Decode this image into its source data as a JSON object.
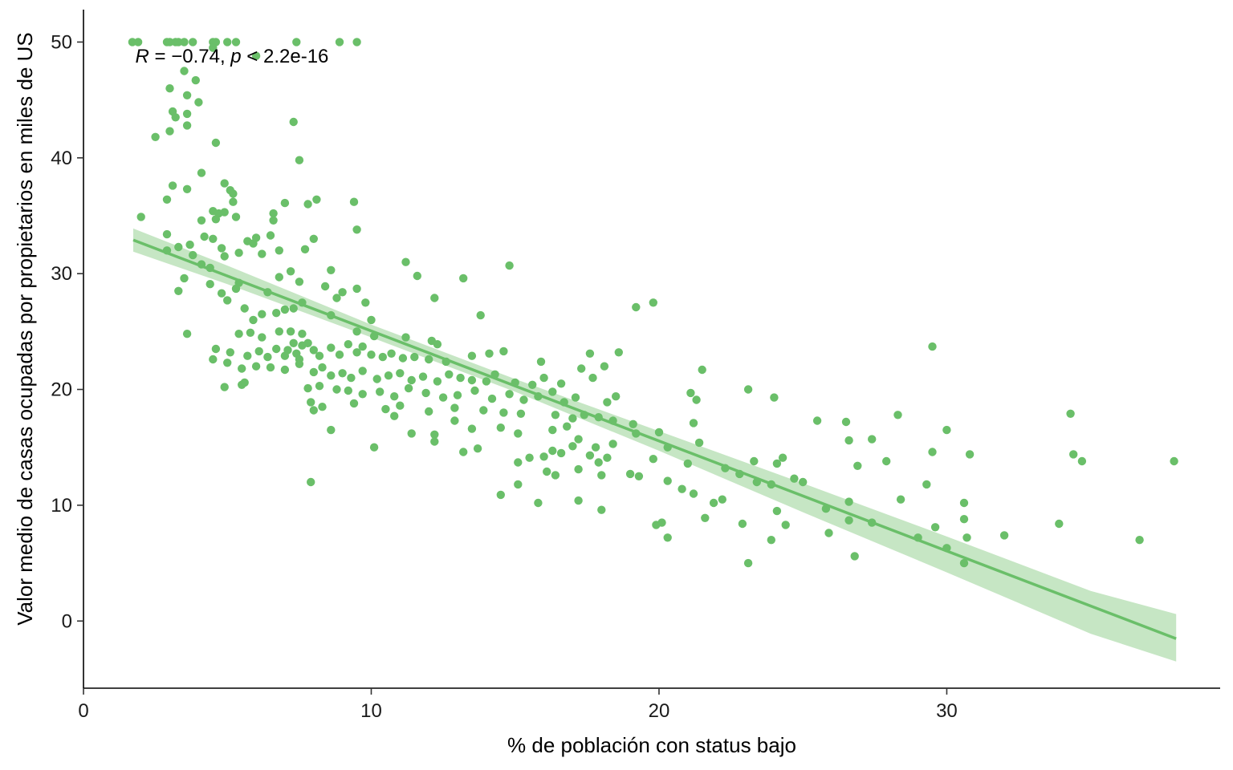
{
  "chart_data": {
    "type": "scatter",
    "title": "",
    "xlabel": "% de población con status bajo",
    "ylabel": "Valor medio de casas ocupadas por propietarios en miles de US",
    "xlim": [
      0,
      39.5
    ],
    "ylim": [
      -5.8,
      52.8
    ],
    "x_ticks": [
      0,
      10,
      20,
      30
    ],
    "y_ticks": [
      0,
      10,
      20,
      30,
      40,
      50
    ],
    "x_tick_labels": [
      "0",
      "10",
      "20",
      "30"
    ],
    "y_tick_labels": [
      "0",
      "10",
      "20",
      "30",
      "40",
      "50"
    ],
    "grid": false,
    "legend": "none",
    "color": "#6ABF69",
    "band_color": "#C6E6C4",
    "annotation": {
      "r_label": "R",
      "r_value": " = −0.74, ",
      "p_label": "p",
      "p_value": " < 2.2e-16",
      "x": 1.8,
      "y": 49.2
    },
    "fit": {
      "method": "linear",
      "x_range": [
        1.73,
        37.97
      ],
      "intercept": 34.55,
      "slope": -0.95,
      "ci_upper": [
        [
          1.73,
          33.9
        ],
        [
          5,
          30.7
        ],
        [
          10,
          25.6
        ],
        [
          15,
          20.9
        ],
        [
          20,
          16.4
        ],
        [
          25,
          11.9
        ],
        [
          30,
          7.3
        ],
        [
          35,
          2.6
        ],
        [
          37.97,
          0.6
        ]
      ],
      "ci_lower": [
        [
          1.73,
          31.9
        ],
        [
          5,
          29.1
        ],
        [
          10,
          24.5
        ],
        [
          15,
          19.8
        ],
        [
          20,
          14.7
        ],
        [
          25,
          9.4
        ],
        [
          30,
          4.2
        ],
        [
          35,
          -1.1
        ],
        [
          37.97,
          -3.5
        ]
      ]
    },
    "points": [
      [
        1.7,
        50
      ],
      [
        1.9,
        50
      ],
      [
        2.9,
        50
      ],
      [
        3.0,
        50
      ],
      [
        3.2,
        50
      ],
      [
        3.3,
        50
      ],
      [
        3.5,
        50
      ],
      [
        3.8,
        50
      ],
      [
        4.5,
        50
      ],
      [
        4.6,
        50
      ],
      [
        5.0,
        50
      ],
      [
        5.3,
        50
      ],
      [
        7.4,
        50
      ],
      [
        8.9,
        50
      ],
      [
        9.5,
        50
      ],
      [
        4.5,
        49.5
      ],
      [
        6.0,
        48.8
      ],
      [
        3.5,
        47.5
      ],
      [
        3.9,
        46.7
      ],
      [
        3.0,
        46.0
      ],
      [
        3.6,
        45.4
      ],
      [
        4.0,
        44.8
      ],
      [
        3.1,
        44.0
      ],
      [
        3.6,
        43.8
      ],
      [
        3.2,
        43.5
      ],
      [
        3.6,
        42.8
      ],
      [
        3.0,
        42.3
      ],
      [
        7.3,
        43.1
      ],
      [
        2.5,
        41.8
      ],
      [
        4.6,
        41.3
      ],
      [
        7.5,
        39.8
      ],
      [
        4.1,
        38.7
      ],
      [
        4.9,
        37.8
      ],
      [
        3.1,
        37.6
      ],
      [
        3.6,
        37.3
      ],
      [
        5.1,
        37.2
      ],
      [
        5.2,
        36.9
      ],
      [
        2.9,
        36.4
      ],
      [
        5.2,
        36.2
      ],
      [
        7.0,
        36.1
      ],
      [
        7.8,
        36.0
      ],
      [
        8.1,
        36.4
      ],
      [
        9.4,
        36.2
      ],
      [
        4.5,
        35.4
      ],
      [
        4.7,
        35.2
      ],
      [
        4.9,
        35.3
      ],
      [
        6.6,
        35.2
      ],
      [
        2.0,
        34.9
      ],
      [
        5.3,
        34.9
      ],
      [
        6.6,
        34.6
      ],
      [
        4.1,
        34.6
      ],
      [
        4.6,
        34.7
      ],
      [
        9.5,
        33.8
      ],
      [
        2.9,
        33.4
      ],
      [
        4.2,
        33.2
      ],
      [
        4.5,
        33.0
      ],
      [
        6.0,
        33.1
      ],
      [
        6.5,
        33.3
      ],
      [
        5.7,
        32.8
      ],
      [
        5.9,
        32.6
      ],
      [
        8.0,
        33.0
      ],
      [
        3.7,
        32.5
      ],
      [
        3.3,
        32.3
      ],
      [
        4.8,
        32.2
      ],
      [
        6.8,
        32.0
      ],
      [
        7.7,
        32.1
      ],
      [
        2.9,
        32.0
      ],
      [
        3.8,
        31.6
      ],
      [
        5.4,
        31.8
      ],
      [
        4.9,
        31.5
      ],
      [
        6.2,
        31.7
      ],
      [
        11.2,
        31.0
      ],
      [
        14.8,
        30.7
      ],
      [
        4.1,
        30.8
      ],
      [
        4.4,
        30.5
      ],
      [
        7.2,
        30.2
      ],
      [
        8.6,
        30.3
      ],
      [
        11.6,
        29.8
      ],
      [
        13.2,
        29.6
      ],
      [
        3.5,
        29.6
      ],
      [
        4.4,
        29.1
      ],
      [
        5.4,
        29.2
      ],
      [
        6.8,
        29.7
      ],
      [
        7.5,
        29.3
      ],
      [
        8.4,
        28.9
      ],
      [
        5.3,
        28.7
      ],
      [
        6.4,
        28.4
      ],
      [
        9.5,
        28.7
      ],
      [
        9.0,
        28.4
      ],
      [
        12.2,
        27.9
      ],
      [
        3.3,
        28.5
      ],
      [
        4.8,
        28.3
      ],
      [
        5.0,
        27.7
      ],
      [
        7.6,
        27.5
      ],
      [
        8.8,
        27.9
      ],
      [
        9.8,
        27.5
      ],
      [
        19.8,
        27.5
      ],
      [
        19.2,
        27.1
      ],
      [
        5.6,
        27.0
      ],
      [
        7.3,
        27.0
      ],
      [
        6.2,
        26.5
      ],
      [
        7.0,
        26.9
      ],
      [
        8.6,
        26.4
      ],
      [
        6.7,
        26.6
      ],
      [
        5.9,
        26.0
      ],
      [
        10.0,
        26.0
      ],
      [
        13.8,
        26.4
      ],
      [
        3.6,
        24.8
      ],
      [
        5.4,
        24.8
      ],
      [
        5.8,
        24.9
      ],
      [
        6.2,
        24.5
      ],
      [
        6.8,
        25.0
      ],
      [
        7.2,
        25.0
      ],
      [
        7.6,
        24.8
      ],
      [
        9.5,
        25.0
      ],
      [
        10.1,
        24.6
      ],
      [
        11.2,
        24.5
      ],
      [
        12.1,
        24.2
      ],
      [
        12.3,
        23.9
      ],
      [
        4.6,
        23.5
      ],
      [
        5.1,
        23.2
      ],
      [
        5.7,
        22.9
      ],
      [
        6.1,
        23.3
      ],
      [
        6.4,
        22.8
      ],
      [
        6.7,
        23.5
      ],
      [
        7.0,
        22.9
      ],
      [
        7.1,
        23.4
      ],
      [
        7.3,
        24.0
      ],
      [
        7.4,
        23.1
      ],
      [
        7.5,
        22.6
      ],
      [
        7.6,
        23.8
      ],
      [
        7.8,
        24.0
      ],
      [
        8.0,
        23.4
      ],
      [
        8.2,
        22.9
      ],
      [
        8.6,
        23.6
      ],
      [
        8.9,
        23.0
      ],
      [
        9.2,
        23.9
      ],
      [
        9.5,
        23.2
      ],
      [
        9.7,
        23.7
      ],
      [
        10.0,
        23.0
      ],
      [
        10.4,
        22.8
      ],
      [
        10.7,
        23.1
      ],
      [
        11.1,
        22.7
      ],
      [
        11.5,
        22.8
      ],
      [
        12.0,
        22.6
      ],
      [
        12.6,
        22.4
      ],
      [
        13.5,
        22.9
      ],
      [
        14.1,
        23.1
      ],
      [
        14.6,
        23.3
      ],
      [
        15.9,
        22.4
      ],
      [
        17.6,
        23.1
      ],
      [
        18.6,
        23.2
      ],
      [
        29.5,
        23.7
      ],
      [
        4.5,
        22.6
      ],
      [
        5.0,
        22.3
      ],
      [
        5.5,
        21.8
      ],
      [
        6.0,
        22.0
      ],
      [
        6.5,
        21.9
      ],
      [
        7.0,
        21.7
      ],
      [
        7.5,
        22.2
      ],
      [
        8.0,
        21.5
      ],
      [
        8.3,
        21.9
      ],
      [
        8.6,
        21.2
      ],
      [
        9.0,
        21.4
      ],
      [
        9.3,
        21.0
      ],
      [
        9.7,
        21.6
      ],
      [
        10.2,
        20.9
      ],
      [
        10.6,
        21.2
      ],
      [
        11.0,
        21.4
      ],
      [
        11.4,
        20.8
      ],
      [
        11.8,
        21.1
      ],
      [
        12.3,
        20.7
      ],
      [
        12.7,
        21.3
      ],
      [
        13.1,
        21.0
      ],
      [
        13.5,
        20.8
      ],
      [
        14.0,
        20.7
      ],
      [
        14.3,
        21.3
      ],
      [
        15.0,
        20.6
      ],
      [
        15.6,
        20.4
      ],
      [
        16.0,
        21.0
      ],
      [
        16.6,
        20.5
      ],
      [
        17.3,
        21.8
      ],
      [
        17.7,
        21.0
      ],
      [
        18.1,
        22.0
      ],
      [
        21.5,
        21.7
      ],
      [
        4.9,
        20.2
      ],
      [
        5.5,
        20.4
      ],
      [
        5.6,
        20.6
      ],
      [
        7.8,
        20.1
      ],
      [
        8.2,
        20.3
      ],
      [
        8.8,
        20.0
      ],
      [
        9.2,
        19.9
      ],
      [
        9.7,
        19.6
      ],
      [
        10.3,
        19.8
      ],
      [
        10.8,
        19.4
      ],
      [
        11.3,
        20.1
      ],
      [
        11.9,
        19.7
      ],
      [
        12.5,
        19.3
      ],
      [
        13.0,
        19.5
      ],
      [
        13.6,
        19.9
      ],
      [
        14.2,
        19.2
      ],
      [
        14.8,
        19.6
      ],
      [
        15.3,
        19.1
      ],
      [
        15.8,
        19.4
      ],
      [
        16.3,
        19.8
      ],
      [
        16.7,
        18.9
      ],
      [
        17.1,
        19.3
      ],
      [
        18.2,
        18.9
      ],
      [
        18.5,
        19.4
      ],
      [
        21.1,
        19.7
      ],
      [
        21.3,
        19.1
      ],
      [
        24.0,
        19.3
      ],
      [
        23.1,
        20.0
      ],
      [
        7.9,
        18.9
      ],
      [
        8.3,
        18.5
      ],
      [
        9.4,
        18.8
      ],
      [
        10.5,
        18.3
      ],
      [
        11.0,
        18.6
      ],
      [
        12.0,
        18.1
      ],
      [
        12.9,
        18.4
      ],
      [
        13.9,
        18.2
      ],
      [
        14.6,
        18.0
      ],
      [
        15.2,
        17.9
      ],
      [
        16.4,
        17.8
      ],
      [
        17.0,
        17.5
      ],
      [
        17.9,
        17.6
      ],
      [
        18.4,
        17.3
      ],
      [
        17.4,
        17.8
      ],
      [
        19.1,
        17.0
      ],
      [
        21.2,
        17.1
      ],
      [
        25.5,
        17.3
      ],
      [
        26.5,
        17.2
      ],
      [
        28.3,
        17.8
      ],
      [
        34.3,
        17.9
      ],
      [
        8.0,
        18.2
      ],
      [
        10.8,
        17.7
      ],
      [
        11.4,
        16.2
      ],
      [
        12.2,
        16.1
      ],
      [
        12.9,
        17.3
      ],
      [
        13.5,
        16.6
      ],
      [
        14.5,
        16.7
      ],
      [
        15.1,
        16.2
      ],
      [
        16.3,
        16.5
      ],
      [
        16.8,
        16.8
      ],
      [
        17.2,
        15.7
      ],
      [
        17.8,
        15.0
      ],
      [
        18.4,
        15.3
      ],
      [
        19.2,
        16.2
      ],
      [
        20.0,
        16.3
      ],
      [
        21.4,
        15.4
      ],
      [
        26.6,
        15.6
      ],
      [
        27.4,
        15.7
      ],
      [
        29.5,
        14.6
      ],
      [
        30.0,
        16.5
      ],
      [
        34.4,
        14.4
      ],
      [
        34.7,
        13.8
      ],
      [
        37.9,
        13.8
      ],
      [
        8.6,
        16.5
      ],
      [
        10.1,
        15.0
      ],
      [
        12.2,
        15.5
      ],
      [
        13.2,
        14.6
      ],
      [
        13.7,
        14.9
      ],
      [
        15.5,
        14.1
      ],
      [
        16.0,
        14.2
      ],
      [
        16.3,
        14.7
      ],
      [
        16.6,
        14.5
      ],
      [
        17.0,
        15.1
      ],
      [
        17.6,
        14.3
      ],
      [
        17.9,
        13.7
      ],
      [
        18.2,
        14.1
      ],
      [
        19.8,
        14.0
      ],
      [
        20.3,
        15.0
      ],
      [
        21.0,
        13.6
      ],
      [
        22.3,
        13.2
      ],
      [
        22.8,
        12.7
      ],
      [
        23.3,
        13.8
      ],
      [
        24.1,
        13.6
      ],
      [
        24.3,
        14.1
      ],
      [
        26.9,
        13.4
      ],
      [
        27.9,
        13.8
      ],
      [
        30.8,
        14.4
      ],
      [
        7.9,
        12.0
      ],
      [
        15.1,
        13.7
      ],
      [
        16.1,
        12.9
      ],
      [
        16.4,
        12.6
      ],
      [
        17.2,
        13.1
      ],
      [
        18.0,
        12.6
      ],
      [
        19.0,
        12.7
      ],
      [
        19.3,
        12.5
      ],
      [
        20.3,
        12.1
      ],
      [
        20.8,
        11.4
      ],
      [
        21.2,
        11.0
      ],
      [
        21.9,
        10.2
      ],
      [
        22.2,
        10.5
      ],
      [
        23.4,
        12.0
      ],
      [
        23.9,
        11.8
      ],
      [
        24.7,
        12.3
      ],
      [
        25.0,
        12.0
      ],
      [
        26.6,
        10.3
      ],
      [
        28.4,
        10.5
      ],
      [
        29.3,
        11.8
      ],
      [
        30.6,
        10.2
      ],
      [
        14.5,
        10.9
      ],
      [
        15.1,
        11.8
      ],
      [
        15.8,
        10.2
      ],
      [
        17.2,
        10.4
      ],
      [
        18.0,
        9.6
      ],
      [
        19.9,
        8.3
      ],
      [
        20.1,
        8.5
      ],
      [
        20.3,
        7.2
      ],
      [
        21.6,
        8.9
      ],
      [
        22.9,
        8.4
      ],
      [
        23.9,
        7.0
      ],
      [
        24.4,
        8.3
      ],
      [
        24.1,
        9.5
      ],
      [
        25.8,
        9.7
      ],
      [
        25.9,
        7.6
      ],
      [
        26.6,
        8.7
      ],
      [
        27.4,
        8.5
      ],
      [
        29.0,
        7.2
      ],
      [
        29.6,
        8.1
      ],
      [
        30.0,
        6.3
      ],
      [
        30.7,
        7.2
      ],
      [
        32.0,
        7.4
      ],
      [
        33.9,
        8.4
      ],
      [
        36.7,
        7.0
      ],
      [
        23.1,
        5.0
      ],
      [
        26.8,
        5.6
      ],
      [
        30.6,
        5.0
      ],
      [
        30.6,
        8.8
      ]
    ]
  }
}
